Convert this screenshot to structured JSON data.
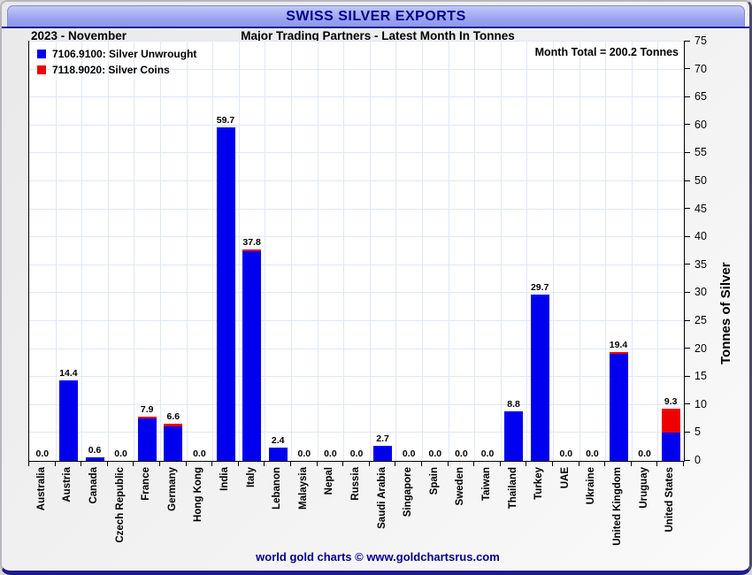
{
  "header": {
    "title": "SWISS SILVER EXPORTS",
    "period": "2023 - November",
    "subtitle": "Major Trading Partners - Latest Month In Tonnes",
    "month_total": "Month Total = 200.2 Tonnes"
  },
  "legend": [
    {
      "label": "7106.9100: Silver Unwrought",
      "color": "#0000ee"
    },
    {
      "label": "7118.9020: Silver Coins",
      "color": "#ee0000"
    }
  ],
  "footer": {
    "text": "world gold charts © www.goldchartsrus.com"
  },
  "colors": {
    "bar_blue": "#0000ee",
    "bar_red": "#ee0000",
    "grid": "#dfe8f6",
    "navy": "#00008b",
    "titlebar_top": "#c2c7f7",
    "titlebar_bottom": "#8d97ec"
  },
  "chart_data": {
    "type": "bar",
    "stacked": true,
    "title": "SWISS SILVER EXPORTS",
    "subtitle": "Major Trading Partners - Latest Month In Tonnes",
    "xlabel": "",
    "ylabel": "Tonnes of Silver",
    "ylim": [
      0,
      75
    ],
    "ytick_step": 5,
    "grid": true,
    "legend_position": "top-left",
    "categories": [
      "Australia",
      "Austria",
      "Canada",
      "Czech Republic",
      "France",
      "Germany",
      "Hong Kong",
      "India",
      "Italy",
      "Lebanon",
      "Malaysia",
      "Nepal",
      "Russia",
      "Saudi Arabia",
      "Singapore",
      "Spain",
      "Sweden",
      "Taiwan",
      "Thailand",
      "Turkey",
      "UAE",
      "Ukraine",
      "United Kingdom",
      "Uruguay",
      "United States"
    ],
    "series": [
      {
        "name": "7106.9100: Silver Unwrought",
        "color": "#0000ee",
        "values": [
          0,
          14.4,
          0.6,
          0,
          7.6,
          6.2,
          0,
          59.7,
          37.5,
          2.4,
          0,
          0,
          0,
          2.7,
          0,
          0,
          0,
          0,
          8.8,
          29.7,
          0,
          0,
          19.1,
          0,
          5.1
        ]
      },
      {
        "name": "7118.9020: Silver Coins",
        "color": "#ee0000",
        "values": [
          0,
          0,
          0,
          0,
          0.3,
          0.4,
          0,
          0,
          0.3,
          0,
          0,
          0,
          0,
          0,
          0,
          0,
          0,
          0,
          0,
          0,
          0,
          0,
          0.3,
          0,
          4.2
        ]
      }
    ],
    "totals": [
      0.0,
      14.4,
      0.6,
      0.0,
      7.9,
      6.6,
      0.0,
      59.7,
      37.8,
      2.4,
      0.0,
      0.0,
      0.0,
      2.7,
      0.0,
      0.0,
      0.0,
      0.0,
      8.8,
      29.7,
      0.0,
      0.0,
      19.4,
      0.0,
      9.3
    ]
  }
}
